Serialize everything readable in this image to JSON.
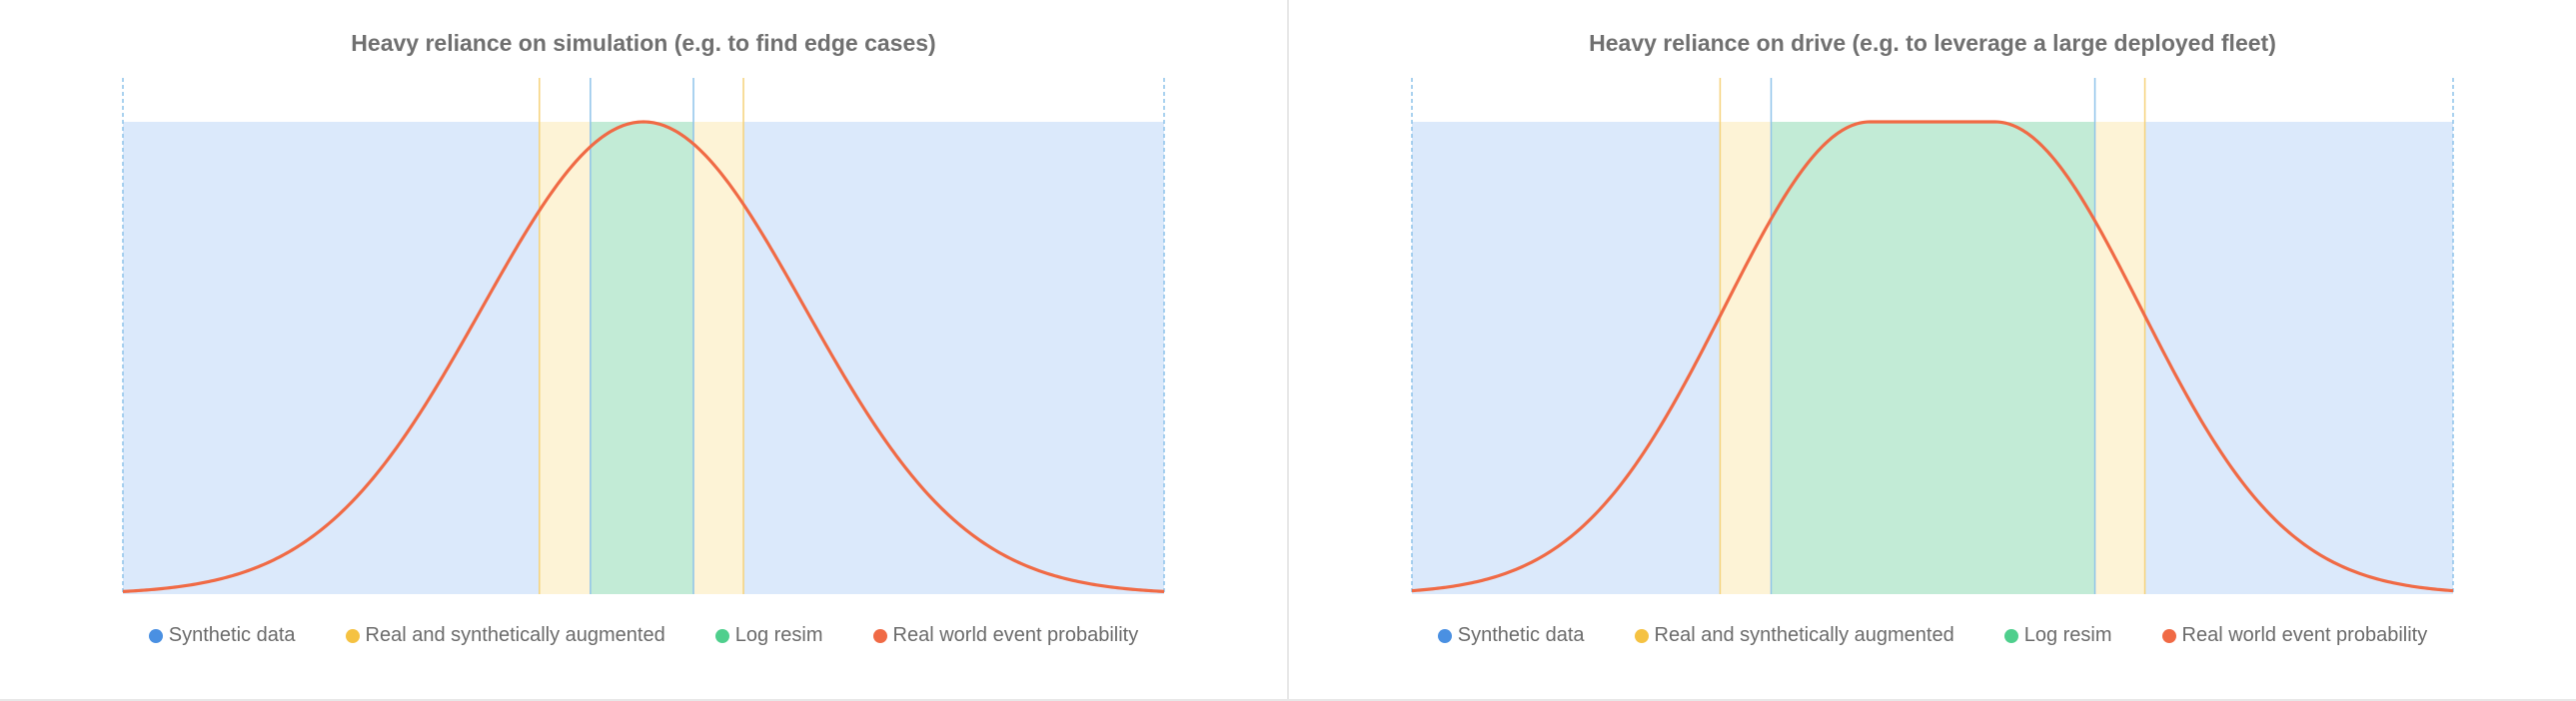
{
  "colors": {
    "synthetic": "#dbe9fb",
    "synthetic_line": "#8ec3ea",
    "synthetic_dot": "#4a90e2",
    "augmented": "#fdf3d6",
    "augmented_line": "#f5d27a",
    "augmented_dot": "#f5c242",
    "logresim": "#c2ebd6",
    "logresim_dot": "#4fcf8d",
    "curve": "#f06a45"
  },
  "legend": {
    "synthetic": "Synthetic data",
    "augmented": "Real and synthetically augmented",
    "logresim": "Log resim",
    "curve": "Real world event probability"
  },
  "chart_data": [
    {
      "type": "area",
      "title": "Heavy reliance on simulation (e.g. to find edge cases)",
      "xlim": [
        0,
        1
      ],
      "ylim": [
        0,
        1
      ],
      "bands": [
        {
          "series": "Synthetic data",
          "from": 0.0,
          "to": 0.4
        },
        {
          "series": "Real and synthetically augmented",
          "from": 0.4,
          "to": 0.449
        },
        {
          "series": "Log resim",
          "from": 0.449,
          "to": 0.548
        },
        {
          "series": "Real and synthetically augmented",
          "from": 0.548,
          "to": 0.596
        },
        {
          "series": "Synthetic data",
          "from": 0.596,
          "to": 1.0
        }
      ],
      "curve": {
        "name": "Real world event probability",
        "shape": "gaussian",
        "peak_x": 0.5,
        "peak_y": 1.0,
        "sigma": 0.155,
        "flat_top": 0.0
      }
    },
    {
      "type": "area",
      "title": "Heavy reliance on drive (e.g. to leverage a large deployed fleet)",
      "xlim": [
        0,
        1
      ],
      "ylim": [
        0,
        1
      ],
      "bands": [
        {
          "series": "Synthetic data",
          "from": 0.0,
          "to": 0.296
        },
        {
          "series": "Real and synthetically augmented",
          "from": 0.296,
          "to": 0.345
        },
        {
          "series": "Log resim",
          "from": 0.345,
          "to": 0.656
        },
        {
          "series": "Real and synthetically augmented",
          "from": 0.656,
          "to": 0.704
        },
        {
          "series": "Synthetic data",
          "from": 0.704,
          "to": 1.0
        }
      ],
      "curve": {
        "name": "Real world event probability",
        "shape": "gaussian",
        "peak_x": 0.5,
        "peak_y": 1.0,
        "sigma": 0.14,
        "flat_top": 0.12
      }
    }
  ]
}
